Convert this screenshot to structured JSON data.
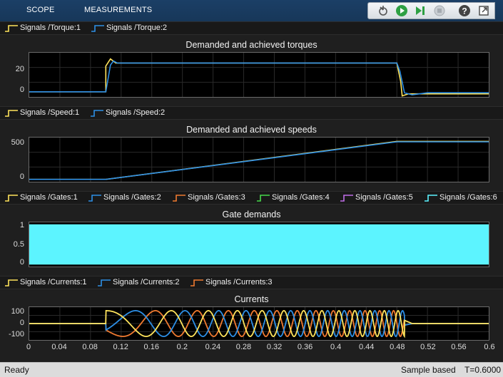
{
  "toolstrip": {
    "tabs": [
      "SCOPE",
      "MEASUREMENTS"
    ],
    "icons": [
      "stepback-icon",
      "run-icon",
      "step-forward-icon",
      "stop-icon",
      "help-icon",
      "undock-icon"
    ]
  },
  "legends": {
    "torque": [
      "Signals /Torque:1",
      "Signals /Torque:2"
    ],
    "speed": [
      "Signals /Speed:1",
      "Signals /Speed:2"
    ],
    "gates": [
      "Signals /Gates:1",
      "Signals /Gates:2",
      "Signals /Gates:3",
      "Signals /Gates:4",
      "Signals /Gates:5",
      "Signals /Gates:6"
    ],
    "currents": [
      "Signals /Currents:1",
      "Signals /Currents:2",
      "Signals /Currents:3"
    ]
  },
  "colors": {
    "series": [
      "#ffe45c",
      "#2d8fe6",
      "#f07a30",
      "#46d84a",
      "#c06ee8",
      "#5cf4ff"
    ],
    "toolstrip": "#1b3f66",
    "axes_bg": "#000000"
  },
  "chart_data": [
    {
      "type": "line",
      "title": "Demanded and achieved torques",
      "yticks": [
        "20",
        "0"
      ],
      "ylim": [
        -5,
        38
      ],
      "xlim": [
        0,
        0.6
      ],
      "series": [
        {
          "name": "Signals /Torque:1",
          "points": [
            [
              0,
              0
            ],
            [
              0.1,
              0
            ],
            [
              0.1,
              25
            ],
            [
              0.106,
              32
            ],
            [
              0.113,
              28
            ],
            [
              0.48,
              28
            ],
            [
              0.485,
              10
            ],
            [
              0.487,
              -4
            ],
            [
              0.495,
              -2
            ],
            [
              0.6,
              -2
            ]
          ]
        },
        {
          "name": "Signals /Torque:2",
          "points": [
            [
              0,
              0
            ],
            [
              0.1,
              0
            ],
            [
              0.106,
              26
            ],
            [
              0.11,
              30
            ],
            [
              0.115,
              28
            ],
            [
              0.48,
              28
            ],
            [
              0.484,
              20
            ],
            [
              0.49,
              -1
            ],
            [
              0.5,
              -3
            ],
            [
              0.52,
              -1
            ],
            [
              0.6,
              -1
            ]
          ]
        }
      ]
    },
    {
      "type": "line",
      "title": "Demanded and achieved speeds",
      "yticks": [
        "500",
        "0"
      ],
      "ylim": [
        -30,
        540
      ],
      "xlim": [
        0,
        0.6
      ],
      "series": [
        {
          "name": "Signals /Speed:1",
          "points": [
            [
              0,
              0
            ],
            [
              0.1,
              0
            ],
            [
              0.48,
              490
            ],
            [
              0.6,
              490
            ]
          ]
        },
        {
          "name": "Signals /Speed:2",
          "points": [
            [
              0,
              0
            ],
            [
              0.1,
              0
            ],
            [
              0.48,
              485
            ],
            [
              0.6,
              485
            ]
          ]
        }
      ]
    },
    {
      "type": "area",
      "title": "Gate demands",
      "yticks": [
        "1",
        "0.5",
        "0"
      ],
      "ylim": [
        -0.05,
        1.05
      ],
      "xlim": [
        0,
        0.6
      ],
      "series": [
        {
          "name": "Signals /Gates:6",
          "points": [
            [
              0,
              0
            ],
            [
              0,
              1
            ],
            [
              0.6,
              1
            ],
            [
              0.6,
              0
            ]
          ]
        }
      ]
    },
    {
      "type": "line",
      "title": "Currents",
      "yticks": [
        "100",
        "0",
        "-100"
      ],
      "xticks": [
        "0",
        "0.04",
        "0.08",
        "0.12",
        "0.16",
        "0.2",
        "0.24",
        "0.28",
        "0.32",
        "0.36",
        "0.4",
        "0.44",
        "0.48",
        "0.52",
        "0.56",
        "0.6"
      ],
      "ylim": [
        -140,
        140
      ],
      "xlim": [
        0,
        0.6
      ],
      "series": [
        {
          "name": "Signals /Currents:1",
          "phase": 0
        },
        {
          "name": "Signals /Currents:2",
          "phase": -2.094
        },
        {
          "name": "Signals /Currents:3",
          "phase": 2.094
        }
      ],
      "amplitude": 110,
      "t_start": 0.1,
      "t_end": 0.49,
      "start_frequency_hz": 6,
      "end_frequency_hz": 58
    }
  ],
  "status": {
    "left": "Ready",
    "mode": "Sample based",
    "time": "T=0.6000"
  }
}
